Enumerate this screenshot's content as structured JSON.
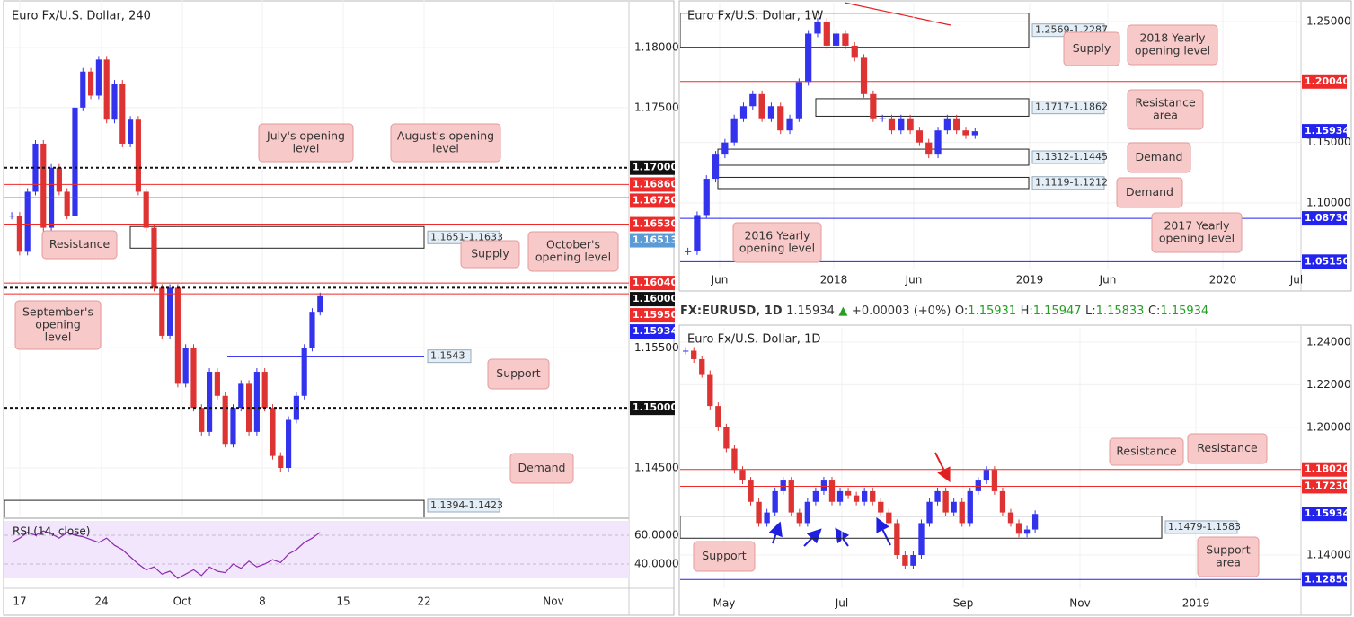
{
  "header": {
    "symbol": "FX:EURUSD, 1D",
    "last": "1.15934",
    "arrow": "▲",
    "change": "+0.00003 (+0%)",
    "o_label": "O:",
    "o": "1.15931",
    "h_label": "H:",
    "h": "1.15947",
    "l_label": "L:",
    "l": "1.15833",
    "c_label": "C:",
    "c": "1.15934"
  },
  "panels": [
    {
      "title": "Euro Fx/U.S. Dollar, 240",
      "axis_labels": [
        {
          "value": 1.18,
          "label": "1.18000"
        },
        {
          "value": 1.175,
          "label": "1.17500"
        },
        {
          "value": 1.155,
          "label": "1.15500"
        },
        {
          "value": 1.145,
          "label": "1.14500"
        }
      ],
      "time_labels": [
        "17",
        "24",
        "Oct",
        "8",
        "15",
        "22",
        "Nov"
      ],
      "tags": [
        {
          "value": 1.17,
          "label": "1.17000",
          "color": "#111111",
          "line": "dash"
        },
        {
          "value": 1.1686,
          "label": "1.16860",
          "color": "#ee2b2b",
          "line": "solid"
        },
        {
          "value": 1.1675,
          "label": "1.16750",
          "color": "#ee2b2b",
          "line": "solid"
        },
        {
          "value": 1.1653,
          "label": "1.16530",
          "color": "#ee2b2b",
          "line": "solid"
        },
        {
          "value": 1.16513,
          "label": "1.16513",
          "color": "#5b9bd5"
        },
        {
          "value": 1.1604,
          "label": "1.16040",
          "color": "#ee2b2b",
          "line": "solid"
        },
        {
          "value": 1.16,
          "label": "1.16000",
          "color": "#111111",
          "line": "dash"
        },
        {
          "value": 1.1595,
          "label": "1.15950",
          "color": "#ee2b2b",
          "line": "solid"
        },
        {
          "value": 1.15934,
          "label": "1.15934",
          "color": "#2323ee"
        },
        {
          "value": 1.15,
          "label": "1.15000",
          "color": "#111111",
          "line": "dash"
        }
      ],
      "zones": [
        {
          "label": "1.1651-1.1633",
          "values": [
            1.1651,
            1.1633
          ]
        },
        {
          "label": "1.1394-1.1423",
          "values": [
            1.1394,
            1.1423
          ]
        }
      ],
      "support_line": {
        "label": "1.1543",
        "value": 1.1543
      },
      "annotations": [
        {
          "lines": [
            "July's opening",
            "level"
          ]
        },
        {
          "lines": [
            "August's opening",
            "level"
          ]
        },
        {
          "lines": [
            "Resistance"
          ]
        },
        {
          "lines": [
            "Supply"
          ]
        },
        {
          "lines": [
            "October's",
            "opening level"
          ]
        },
        {
          "lines": [
            "September's",
            "opening",
            "level"
          ]
        },
        {
          "lines": [
            "Support"
          ]
        },
        {
          "lines": [
            "Demand"
          ]
        }
      ],
      "closes": [
        1.166,
        1.163,
        1.168,
        1.172,
        1.165,
        1.17,
        1.168,
        1.166,
        1.175,
        1.178,
        1.176,
        1.179,
        1.174,
        1.177,
        1.172,
        1.174,
        1.168,
        1.165,
        1.16,
        1.156,
        1.16,
        1.152,
        1.155,
        1.15,
        1.148,
        1.153,
        1.151,
        1.147,
        1.15,
        1.152,
        1.148,
        1.153,
        1.15,
        1.146,
        1.145,
        1.149,
        1.151,
        1.155,
        1.158,
        1.1593
      ],
      "rsi": {
        "label": "RSI (14, close)",
        "ticks": [
          {
            "value": 60,
            "label": "60.0000"
          },
          {
            "value": 40,
            "label": "40.0000"
          }
        ],
        "values": [
          55,
          58,
          62,
          60,
          63,
          61,
          58,
          62,
          60,
          59,
          57,
          55,
          58,
          53,
          50,
          45,
          40,
          36,
          38,
          33,
          35,
          30,
          33,
          36,
          32,
          38,
          35,
          34,
          40,
          37,
          42,
          38,
          40,
          43,
          41,
          47,
          50,
          55,
          58,
          62
        ]
      }
    },
    {
      "title": "Euro Fx/U.S. Dollar, 1W",
      "axis_labels": [
        {
          "value": 1.25,
          "label": "1.25000"
        },
        {
          "value": 1.15,
          "label": "1.15000"
        },
        {
          "value": 1.1,
          "label": "1.10000"
        }
      ],
      "time_labels": [
        "Jun",
        "2018",
        "Jun",
        "2019",
        "Jun",
        "2020",
        "Jul"
      ],
      "tags": [
        {
          "value": 1.2004,
          "label": "1.20040",
          "color": "#ee2b2b",
          "line": "solid"
        },
        {
          "value": 1.15934,
          "label": "1.15934",
          "color": "#2323ee"
        },
        {
          "value": 1.0873,
          "label": "1.08730",
          "color": "#2323ee",
          "line": "solid"
        },
        {
          "value": 1.0515,
          "label": "1.05150",
          "color": "#2323ee",
          "line": "solid"
        }
      ],
      "zones": [
        {
          "label": "1.2569-1.2287",
          "values": [
            1.2569,
            1.2287
          ]
        },
        {
          "label": "1.1717-1.1862",
          "values": [
            1.1717,
            1.1862
          ]
        },
        {
          "label": "1.1312-1.1445",
          "values": [
            1.1312,
            1.1445
          ]
        },
        {
          "label": "1.1119-1.1212",
          "values": [
            1.1119,
            1.1212
          ]
        }
      ],
      "annotations": [
        {
          "lines": [
            "Supply"
          ]
        },
        {
          "lines": [
            "2018 Yearly",
            "opening level"
          ]
        },
        {
          "lines": [
            "Resistance",
            "area"
          ]
        },
        {
          "lines": [
            "Demand"
          ]
        },
        {
          "lines": [
            "Demand"
          ]
        },
        {
          "lines": [
            "2016 Yearly",
            "opening level"
          ]
        },
        {
          "lines": [
            "2017 Yearly",
            "opening level"
          ]
        }
      ],
      "closes": [
        1.06,
        1.09,
        1.12,
        1.14,
        1.15,
        1.17,
        1.18,
        1.19,
        1.17,
        1.18,
        1.16,
        1.17,
        1.2,
        1.24,
        1.25,
        1.23,
        1.24,
        1.23,
        1.22,
        1.19,
        1.17,
        1.17,
        1.16,
        1.17,
        1.16,
        1.15,
        1.14,
        1.16,
        1.17,
        1.16,
        1.156,
        1.1593
      ]
    },
    {
      "title": "Euro Fx/U.S. Dollar, 1D",
      "axis_labels": [
        {
          "value": 1.24,
          "label": "1.24000"
        },
        {
          "value": 1.22,
          "label": "1.22000"
        },
        {
          "value": 1.2,
          "label": "1.20000"
        },
        {
          "value": 1.14,
          "label": "1.14000"
        }
      ],
      "time_labels": [
        "May",
        "Jul",
        "Sep",
        "Nov",
        "2019"
      ],
      "tags": [
        {
          "value": 1.1802,
          "label": "1.18020",
          "color": "#ee2b2b",
          "line": "solid"
        },
        {
          "value": 1.1723,
          "label": "1.17230",
          "color": "#ee2b2b",
          "line": "solid"
        },
        {
          "value": 1.15934,
          "label": "1.15934",
          "color": "#2323ee"
        },
        {
          "value": 1.1285,
          "label": "1.12850",
          "color": "#2323ee",
          "line": "solid"
        }
      ],
      "zones": [
        {
          "label": "1.1479-1.1583",
          "values": [
            1.1479,
            1.1583
          ]
        }
      ],
      "annotations": [
        {
          "lines": [
            "Resistance"
          ]
        },
        {
          "lines": [
            "Resistance"
          ]
        },
        {
          "lines": [
            "Support"
          ]
        },
        {
          "lines": [
            "Support",
            "area"
          ]
        }
      ],
      "closes": [
        1.236,
        1.232,
        1.225,
        1.21,
        1.2,
        1.19,
        1.18,
        1.175,
        1.165,
        1.155,
        1.16,
        1.17,
        1.175,
        1.16,
        1.155,
        1.165,
        1.17,
        1.175,
        1.165,
        1.17,
        1.168,
        1.165,
        1.17,
        1.165,
        1.16,
        1.155,
        1.14,
        1.135,
        1.14,
        1.155,
        1.165,
        1.17,
        1.16,
        1.165,
        1.155,
        1.17,
        1.175,
        1.18,
        1.17,
        1.16,
        1.155,
        1.15,
        1.152,
        1.1593
      ]
    }
  ]
}
